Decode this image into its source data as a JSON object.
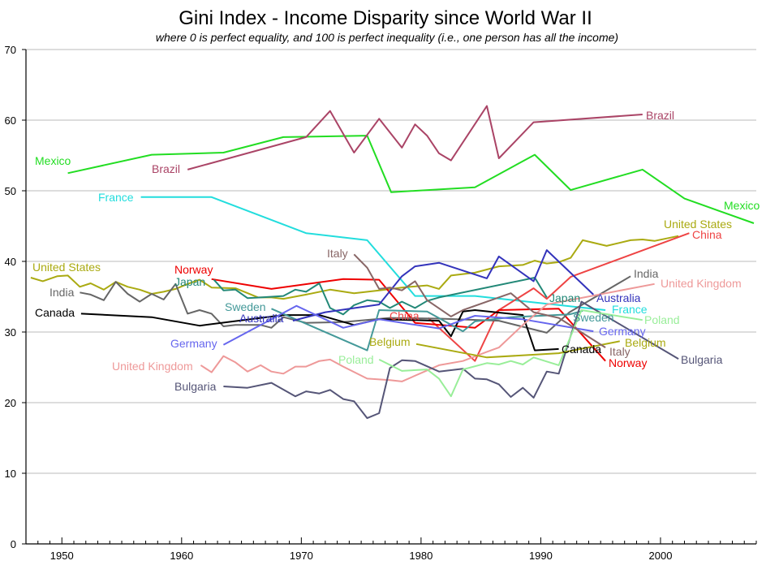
{
  "chart_data": {
    "type": "line",
    "title": "Gini Index - Income Disparity since World War II",
    "subtitle": "where 0 is perfect equality, and 100 is perfect inequality (i.e., one person has all the income)",
    "xlabel": "",
    "ylabel": "",
    "xlim": [
      1947,
      2008
    ],
    "ylim": [
      0,
      70
    ],
    "xticks": [
      1950,
      1960,
      1970,
      1980,
      1990,
      2000
    ],
    "yticks": [
      0,
      10,
      20,
      30,
      40,
      50,
      60,
      70
    ],
    "grid": "horizontal",
    "legend": "inline labels at both ends of each line",
    "series": [
      {
        "name": "Mexico",
        "color": "#22dd22",
        "points": [
          [
            1950.5,
            52.5
          ],
          [
            1957.5,
            55.1
          ],
          [
            1963.5,
            55.4
          ],
          [
            1968.5,
            57.6
          ],
          [
            1975.5,
            57.8
          ],
          [
            1977.5,
            49.8
          ],
          [
            1984.5,
            50.5
          ],
          [
            1989.5,
            55.1
          ],
          [
            1992.5,
            50.1
          ],
          [
            1998.5,
            53.0
          ],
          [
            2002,
            48.9
          ],
          [
            2007.8,
            45.4
          ]
        ]
      },
      {
        "name": "Brazil",
        "color": "#aa4466",
        "points": [
          [
            1960.5,
            53.0
          ],
          [
            1970.4,
            57.6
          ],
          [
            1972.4,
            61.3
          ],
          [
            1974.4,
            55.4
          ],
          [
            1976.5,
            60.2
          ],
          [
            1978.4,
            56.1
          ],
          [
            1979.5,
            59.4
          ],
          [
            1980.5,
            57.8
          ],
          [
            1981.5,
            55.3
          ],
          [
            1982.5,
            54.3
          ],
          [
            1985.5,
            62.0
          ],
          [
            1986.5,
            54.6
          ],
          [
            1989.4,
            59.7
          ],
          [
            1998.5,
            60.8
          ]
        ]
      },
      {
        "name": "France",
        "color": "#22dddd",
        "points": [
          [
            1956.6,
            49.1
          ],
          [
            1962.5,
            49.1
          ],
          [
            1970.4,
            44.0
          ],
          [
            1975.5,
            43.0
          ],
          [
            1979.5,
            35.1
          ],
          [
            1984.5,
            35.1
          ],
          [
            1995.4,
            33.1
          ]
        ]
      },
      {
        "name": "United States",
        "color": "#aaaa11",
        "points": [
          [
            1947.4,
            37.7
          ],
          [
            1948.4,
            37.2
          ],
          [
            1949.6,
            37.9
          ],
          [
            1950.5,
            38.0
          ],
          [
            1951.5,
            36.4
          ],
          [
            1952.4,
            36.9
          ],
          [
            1953.5,
            36.0
          ],
          [
            1954.5,
            37.1
          ],
          [
            1955.5,
            36.4
          ],
          [
            1956.5,
            36.0
          ],
          [
            1957.5,
            35.4
          ],
          [
            1958.5,
            35.7
          ],
          [
            1959.5,
            36.1
          ],
          [
            1960.5,
            36.8
          ],
          [
            1961.5,
            37.4
          ],
          [
            1962.5,
            36.3
          ],
          [
            1964.5,
            36.2
          ],
          [
            1966.4,
            34.9
          ],
          [
            1967.5,
            34.9
          ],
          [
            1968.5,
            34.7
          ],
          [
            1970.4,
            35.3
          ],
          [
            1972.4,
            36.0
          ],
          [
            1974.4,
            35.5
          ],
          [
            1976.5,
            35.9
          ],
          [
            1978.4,
            36.3
          ],
          [
            1980.5,
            36.6
          ],
          [
            1981.5,
            36.1
          ],
          [
            1982.5,
            38.0
          ],
          [
            1984.5,
            38.4
          ],
          [
            1986.5,
            39.3
          ],
          [
            1988.5,
            39.5
          ],
          [
            1989.5,
            40.1
          ],
          [
            1990.5,
            39.7
          ],
          [
            1991.5,
            39.9
          ],
          [
            1992.5,
            40.5
          ],
          [
            1993.5,
            43.0
          ],
          [
            1995.5,
            42.2
          ],
          [
            1997.5,
            43.0
          ],
          [
            1998.5,
            43.1
          ],
          [
            1999.5,
            42.9
          ],
          [
            2001.5,
            43.6
          ]
        ]
      },
      {
        "name": "China",
        "color": "#ee4444",
        "points": [
          [
            1980.6,
            32.0
          ],
          [
            1984.5,
            25.9
          ],
          [
            1986.5,
            33.1
          ],
          [
            1989.4,
            36.2
          ],
          [
            1990.5,
            34.7
          ],
          [
            1992.5,
            37.8
          ],
          [
            2002.4,
            44.0
          ]
        ]
      },
      {
        "name": "Norway",
        "color": "#ee0000",
        "points": [
          [
            1962.5,
            37.5
          ],
          [
            1967.5,
            36.1
          ],
          [
            1973.5,
            37.5
          ],
          [
            1976.5,
            37.4
          ],
          [
            1979.5,
            31.3
          ],
          [
            1984.5,
            30.6
          ],
          [
            1986.5,
            33.1
          ],
          [
            1991.5,
            33.3
          ],
          [
            1995.4,
            25.9
          ]
        ]
      },
      {
        "name": "Japan",
        "color": "#228877",
        "points": [
          [
            1962.7,
            37.4
          ],
          [
            1963.5,
            35.9
          ],
          [
            1964.5,
            36.0
          ],
          [
            1965.5,
            34.8
          ],
          [
            1966.6,
            34.9
          ],
          [
            1968.5,
            35.1
          ],
          [
            1969.5,
            36.0
          ],
          [
            1970.4,
            35.7
          ],
          [
            1971.5,
            36.9
          ],
          [
            1972.4,
            33.4
          ],
          [
            1973.5,
            32.5
          ],
          [
            1974.4,
            33.8
          ],
          [
            1975.5,
            34.5
          ],
          [
            1976.5,
            34.3
          ],
          [
            1977.4,
            33.4
          ],
          [
            1978.4,
            34.3
          ],
          [
            1979.5,
            33.4
          ],
          [
            1980.5,
            34.4
          ],
          [
            1981.5,
            34.9
          ],
          [
            1989.5,
            37.7
          ],
          [
            1990.5,
            34.9
          ]
        ]
      },
      {
        "name": "India",
        "color": "#666666",
        "points": [
          [
            1951.5,
            35.6
          ],
          [
            1952.4,
            35.3
          ],
          [
            1953.5,
            34.5
          ],
          [
            1954.5,
            37.1
          ],
          [
            1955.5,
            35.4
          ],
          [
            1956.5,
            34.3
          ],
          [
            1957.5,
            35.4
          ],
          [
            1958.5,
            34.6
          ],
          [
            1959.5,
            36.8
          ],
          [
            1960.5,
            32.6
          ],
          [
            1961.5,
            33.1
          ],
          [
            1962.5,
            32.6
          ],
          [
            1963.5,
            30.8
          ],
          [
            1964.5,
            31.0
          ],
          [
            1966.6,
            31.0
          ],
          [
            1967.5,
            30.6
          ],
          [
            1968.5,
            32.1
          ],
          [
            1970.4,
            31.3
          ],
          [
            1973.5,
            31.4
          ],
          [
            1977.4,
            32.0
          ],
          [
            1981.5,
            31.9
          ],
          [
            1986.5,
            31.6
          ],
          [
            1990.5,
            29.9
          ],
          [
            1992.4,
            32.8
          ],
          [
            1997.5,
            37.9
          ]
        ]
      },
      {
        "name": "Canada",
        "color": "#000000",
        "points": [
          [
            1951.6,
            32.6
          ],
          [
            1957.5,
            32.1
          ],
          [
            1961.5,
            30.9
          ],
          [
            1968.5,
            32.4
          ],
          [
            1971.5,
            32.4
          ],
          [
            1974.4,
            31.0
          ],
          [
            1976.5,
            31.8
          ],
          [
            1981.5,
            31.6
          ],
          [
            1982.5,
            29.4
          ],
          [
            1983.5,
            32.9
          ],
          [
            1984.5,
            33.1
          ],
          [
            1988.5,
            32.4
          ],
          [
            1989.5,
            27.4
          ],
          [
            1991.5,
            27.6
          ]
        ]
      },
      {
        "name": "Sweden",
        "color": "#449999",
        "points": [
          [
            1967.5,
            33.3
          ],
          [
            1975.5,
            27.4
          ],
          [
            1976.5,
            33.1
          ],
          [
            1980.5,
            32.9
          ],
          [
            1983.5,
            30.1
          ],
          [
            1984.5,
            31.5
          ],
          [
            1987.5,
            32.1
          ],
          [
            1992.4,
            32.5
          ],
          [
            1993.5,
            33.0
          ]
        ]
      },
      {
        "name": "Australia",
        "color": "#3333bb",
        "points": [
          [
            1969.3,
            31.6
          ],
          [
            1972,
            32.8
          ],
          [
            1976.5,
            33.9
          ],
          [
            1978.4,
            37.9
          ],
          [
            1979.5,
            39.3
          ],
          [
            1981.5,
            39.8
          ],
          [
            1985.5,
            37.6
          ],
          [
            1986.5,
            40.7
          ],
          [
            1989.4,
            37.2
          ],
          [
            1990.5,
            41.6
          ],
          [
            1994.4,
            35.3
          ]
        ]
      },
      {
        "name": "Germany",
        "color": "#6666ee",
        "points": [
          [
            1963.5,
            28.2
          ],
          [
            1969.6,
            33.7
          ],
          [
            1973.5,
            30.6
          ],
          [
            1976.5,
            31.8
          ],
          [
            1981.5,
            30.5
          ],
          [
            1984.5,
            32.3
          ],
          [
            1988.5,
            31.8
          ],
          [
            1994.4,
            30.1
          ]
        ]
      },
      {
        "name": "United Kingdom",
        "color": "#ee9999",
        "points": [
          [
            1961.6,
            25.3
          ],
          [
            1962.5,
            24.3
          ],
          [
            1963.5,
            26.6
          ],
          [
            1964.5,
            25.7
          ],
          [
            1965.5,
            24.4
          ],
          [
            1966.6,
            25.3
          ],
          [
            1967.5,
            24.4
          ],
          [
            1968.5,
            24.1
          ],
          [
            1969.5,
            25.1
          ],
          [
            1970.4,
            25.1
          ],
          [
            1971.5,
            25.9
          ],
          [
            1972.4,
            26.1
          ],
          [
            1973.5,
            25.1
          ],
          [
            1975.5,
            23.4
          ],
          [
            1977.4,
            23.2
          ],
          [
            1978.4,
            23.0
          ],
          [
            1981.5,
            25.3
          ],
          [
            1983.5,
            25.9
          ],
          [
            1985.5,
            27.2
          ],
          [
            1986.5,
            27.8
          ],
          [
            1988.5,
            31.0
          ],
          [
            1990.5,
            33.9
          ],
          [
            1999.5,
            36.8
          ]
        ]
      },
      {
        "name": "Bulgaria",
        "color": "#555577",
        "points": [
          [
            1963.5,
            22.3
          ],
          [
            1965.5,
            22.1
          ],
          [
            1967.5,
            22.8
          ],
          [
            1969.5,
            20.9
          ],
          [
            1970.4,
            21.6
          ],
          [
            1971.5,
            21.3
          ],
          [
            1972.4,
            21.8
          ],
          [
            1973.5,
            20.5
          ],
          [
            1974.4,
            20.2
          ],
          [
            1975.5,
            17.8
          ],
          [
            1976.5,
            18.5
          ],
          [
            1977.4,
            24.9
          ],
          [
            1978.4,
            26.0
          ],
          [
            1979.5,
            25.9
          ],
          [
            1981.5,
            24.4
          ],
          [
            1983.5,
            24.8
          ],
          [
            1984.5,
            23.4
          ],
          [
            1985.5,
            23.3
          ],
          [
            1986.5,
            22.6
          ],
          [
            1987.5,
            20.8
          ],
          [
            1988.5,
            22.1
          ],
          [
            1989.4,
            20.7
          ],
          [
            1990.5,
            24.4
          ],
          [
            1991.5,
            24.1
          ],
          [
            1993.4,
            34.3
          ],
          [
            2001.5,
            26.2
          ]
        ]
      },
      {
        "name": "Poland",
        "color": "#99ee99",
        "points": [
          [
            1976.5,
            26.1
          ],
          [
            1978.4,
            24.5
          ],
          [
            1980.5,
            24.7
          ],
          [
            1981.5,
            23.4
          ],
          [
            1982.5,
            20.9
          ],
          [
            1983.5,
            24.7
          ],
          [
            1985.5,
            25.6
          ],
          [
            1986.5,
            25.4
          ],
          [
            1987.5,
            25.9
          ],
          [
            1988.5,
            25.4
          ],
          [
            1989.4,
            26.4
          ],
          [
            1991.5,
            25.3
          ],
          [
            1993.4,
            33.1
          ],
          [
            1998.5,
            31.7
          ]
        ]
      },
      {
        "name": "Belgium",
        "color": "#aaaa11",
        "points": [
          [
            1979.6,
            28.3
          ],
          [
            1985.5,
            26.4
          ],
          [
            1991.5,
            27.0
          ],
          [
            1996.6,
            28.7
          ]
        ]
      },
      {
        "name": "Italy",
        "color": "#886666",
        "points": [
          [
            1974.4,
            41.0
          ],
          [
            1975.5,
            39.1
          ],
          [
            1976.5,
            36.1
          ],
          [
            1977.4,
            36.3
          ],
          [
            1978.4,
            35.9
          ],
          [
            1979.5,
            37.2
          ],
          [
            1980.5,
            34.5
          ],
          [
            1982.5,
            32.2
          ],
          [
            1983.5,
            33.1
          ],
          [
            1987.5,
            35.5
          ],
          [
            1989.4,
            32.8
          ],
          [
            1991.5,
            32.0
          ],
          [
            1995.4,
            27.8
          ]
        ]
      }
    ]
  }
}
